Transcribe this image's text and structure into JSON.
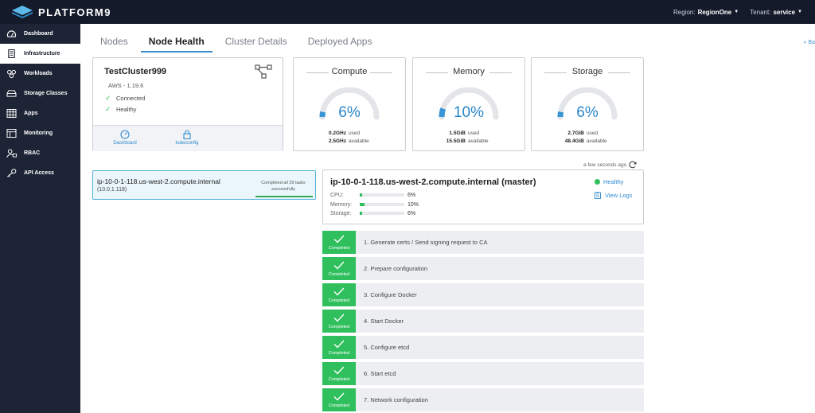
{
  "app": {
    "logo_text": "PLATFORM9"
  },
  "header": {
    "region_label": "Region:",
    "region_value": "RegionOne",
    "tenant_label": "Tenant:",
    "tenant_value": "service"
  },
  "sidebar": {
    "items": [
      {
        "label": "Dashboard",
        "icon": "dashboard-gauge-icon"
      },
      {
        "label": "Infrastructure",
        "icon": "server-icon",
        "active": true
      },
      {
        "label": "Workloads",
        "icon": "workloads-icon"
      },
      {
        "label": "Storage Classes",
        "icon": "storage-icon"
      },
      {
        "label": "Apps",
        "icon": "grid-icon"
      },
      {
        "label": "Monitoring",
        "icon": "monitoring-icon"
      },
      {
        "label": "RBAC",
        "icon": "user-lock-icon"
      },
      {
        "label": "API Access",
        "icon": "key-icon"
      }
    ]
  },
  "tabs": [
    {
      "label": "Nodes"
    },
    {
      "label": "Node Health",
      "active": true
    },
    {
      "label": "Cluster Details"
    },
    {
      "label": "Deployed Apps"
    }
  ],
  "back_link": "« Ba",
  "cluster": {
    "name": "TestCluster999",
    "version": "AWS - 1.19.6",
    "status_connected": "Connected",
    "status_healthy": "Healthy",
    "dashboard_link": "Dashboard",
    "kubeconfig_link": "kubeconfig"
  },
  "gauges": [
    {
      "title": "Compute",
      "percent_label": "6%",
      "percent": 6,
      "used_value": "0.2GHz",
      "used_label": "used",
      "available_value": "2.5GHz",
      "available_label": "available"
    },
    {
      "title": "Memory",
      "percent_label": "10%",
      "percent": 10,
      "used_value": "1.5GiB",
      "used_label": "used",
      "available_value": "15.5GiB",
      "available_label": "available"
    },
    {
      "title": "Storage",
      "percent_label": "6%",
      "percent": 6,
      "used_value": "2.7GiB",
      "used_label": "used",
      "available_value": "48.4GiB",
      "available_label": "available"
    }
  ],
  "node_list": {
    "name": "ip-10-0-1-118.us-west-2.compute.internal",
    "ip": "(10.0.1.118)",
    "status_line1": "Completed all 29 tasks",
    "status_line2": "successfully",
    "progress": 1.0
  },
  "refresh": {
    "text": "a few seconds ago"
  },
  "node_detail": {
    "title": "ip-10-0-1-118.us-west-2.compute.internal (master)",
    "health": "Healthy",
    "view_logs": "View Logs",
    "metrics": [
      {
        "label": "CPU:",
        "value_label": "6%",
        "value": 6
      },
      {
        "label": "Memory:",
        "value_label": "10%",
        "value": 10
      },
      {
        "label": "Storage:",
        "value_label": "6%",
        "value": 6
      }
    ]
  },
  "tasks": [
    {
      "status": "Completed",
      "label": "1. Generate certs / Send signing request to CA"
    },
    {
      "status": "Completed",
      "label": "2. Prepare configuration"
    },
    {
      "status": "Completed",
      "label": "3. Configure Docker"
    },
    {
      "status": "Completed",
      "label": "4. Start Docker"
    },
    {
      "status": "Completed",
      "label": "5. Configure etcd"
    },
    {
      "status": "Completed",
      "label": "6. Start etcd"
    },
    {
      "status": "Completed",
      "label": "7. Network configuration"
    }
  ]
}
